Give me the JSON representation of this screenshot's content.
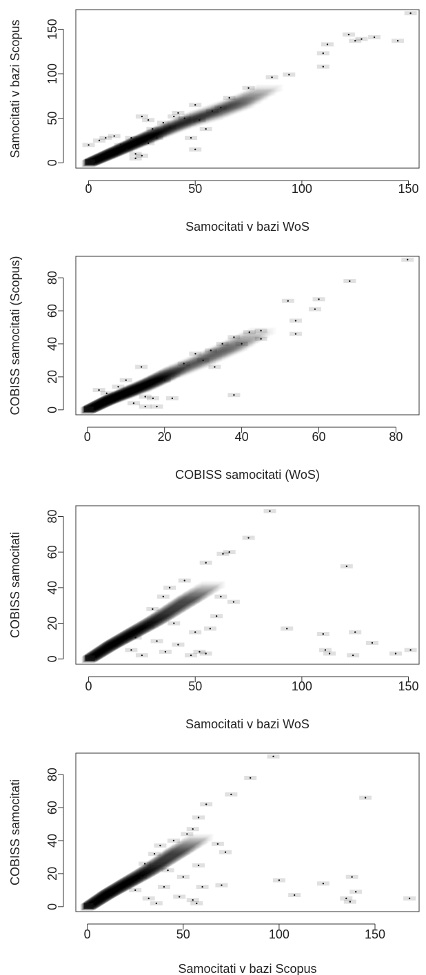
{
  "chart_data": [
    {
      "type": "heatmap",
      "style": "smoothed density scatter (grayscale)",
      "xlabel": "Samocitati v bazi WoS",
      "ylabel": "Samocitati v bazi Scopus",
      "xlim": [
        -6,
        155
      ],
      "ylim": [
        -6,
        172
      ],
      "xticks": [
        0,
        50,
        100,
        150
      ],
      "yticks": [
        0,
        50,
        100,
        150
      ],
      "xtick_labels": [
        "0",
        "50",
        "100",
        "150"
      ],
      "ytick_labels": [
        "0",
        "50",
        "100",
        "150"
      ],
      "grid": false,
      "legend": "none",
      "density_ridge": [
        [
          0,
          0
        ],
        [
          10,
          11
        ],
        [
          20,
          22
        ],
        [
          30,
          33
        ],
        [
          45,
          48
        ],
        [
          60,
          60
        ],
        [
          75,
          75
        ]
      ],
      "outliers": [
        [
          0,
          20
        ],
        [
          5,
          25
        ],
        [
          8,
          28
        ],
        [
          12,
          30
        ],
        [
          15,
          20
        ],
        [
          18,
          15
        ],
        [
          20,
          28
        ],
        [
          22,
          5
        ],
        [
          22,
          10
        ],
        [
          25,
          8
        ],
        [
          25,
          52
        ],
        [
          28,
          48
        ],
        [
          28,
          22
        ],
        [
          30,
          38
        ],
        [
          32,
          28
        ],
        [
          35,
          45
        ],
        [
          38,
          40
        ],
        [
          40,
          52
        ],
        [
          42,
          56
        ],
        [
          45,
          50
        ],
        [
          48,
          28
        ],
        [
          50,
          15
        ],
        [
          50,
          65
        ],
        [
          52,
          48
        ],
        [
          55,
          38
        ],
        [
          58,
          58
        ],
        [
          62,
          62
        ],
        [
          66,
          73
        ],
        [
          75,
          84
        ],
        [
          86,
          96
        ],
        [
          94,
          99
        ],
        [
          110,
          108
        ],
        [
          110,
          123
        ],
        [
          112,
          133
        ],
        [
          122,
          144
        ],
        [
          125,
          137
        ],
        [
          128,
          139
        ],
        [
          134,
          141
        ],
        [
          145,
          137
        ],
        [
          151,
          168
        ]
      ]
    },
    {
      "type": "heatmap",
      "style": "smoothed density scatter (grayscale)",
      "xlabel": "COBISS samocitati (WoS)",
      "ylabel": "COBISS samocitati (Scopus)",
      "xlim": [
        -3,
        86
      ],
      "ylim": [
        -3,
        93
      ],
      "xticks": [
        0,
        20,
        40,
        60,
        80
      ],
      "yticks": [
        0,
        20,
        40,
        60,
        80
      ],
      "xtick_labels": [
        "0",
        "20",
        "40",
        "60",
        "80"
      ],
      "ytick_labels": [
        "0",
        "20",
        "40",
        "60",
        "80"
      ],
      "grid": false,
      "legend": "none",
      "density_ridge": [
        [
          0,
          0
        ],
        [
          5,
          6
        ],
        [
          10,
          11
        ],
        [
          15,
          16
        ],
        [
          20,
          22
        ],
        [
          30,
          32
        ],
        [
          40,
          43
        ]
      ],
      "outliers": [
        [
          3,
          12
        ],
        [
          5,
          10
        ],
        [
          8,
          14
        ],
        [
          10,
          18
        ],
        [
          12,
          4
        ],
        [
          14,
          26
        ],
        [
          15,
          2
        ],
        [
          15,
          8
        ],
        [
          17,
          7
        ],
        [
          18,
          2
        ],
        [
          20,
          18
        ],
        [
          22,
          7
        ],
        [
          25,
          28
        ],
        [
          28,
          34
        ],
        [
          30,
          30
        ],
        [
          32,
          36
        ],
        [
          33,
          26
        ],
        [
          35,
          40
        ],
        [
          38,
          9
        ],
        [
          38,
          44
        ],
        [
          40,
          40
        ],
        [
          42,
          47
        ],
        [
          45,
          43
        ],
        [
          45,
          48
        ],
        [
          52,
          66
        ],
        [
          54,
          54
        ],
        [
          54,
          46
        ],
        [
          59,
          61
        ],
        [
          60,
          67
        ],
        [
          68,
          78
        ],
        [
          83,
          91
        ]
      ]
    },
    {
      "type": "heatmap",
      "style": "smoothed density scatter (grayscale)",
      "xlabel": "Samocitati v bazi WoS",
      "ylabel": "COBISS samocitati",
      "xlim": [
        -6,
        155
      ],
      "ylim": [
        -3,
        86
      ],
      "xticks": [
        0,
        50,
        100,
        150
      ],
      "yticks": [
        0,
        20,
        40,
        60,
        80
      ],
      "xtick_labels": [
        "0",
        "50",
        "100",
        "150"
      ],
      "ytick_labels": [
        "0",
        "20",
        "40",
        "60",
        "80"
      ],
      "grid": false,
      "legend": "none",
      "density_ridge": [
        [
          0,
          0
        ],
        [
          10,
          8
        ],
        [
          20,
          15
        ],
        [
          30,
          22
        ],
        [
          40,
          30
        ],
        [
          50,
          38
        ]
      ],
      "outliers": [
        [
          20,
          5
        ],
        [
          22,
          12
        ],
        [
          25,
          2
        ],
        [
          28,
          18
        ],
        [
          30,
          28
        ],
        [
          32,
          10
        ],
        [
          35,
          35
        ],
        [
          36,
          4
        ],
        [
          38,
          40
        ],
        [
          40,
          20
        ],
        [
          42,
          8
        ],
        [
          45,
          44
        ],
        [
          48,
          2
        ],
        [
          50,
          15
        ],
        [
          52,
          4
        ],
        [
          55,
          3
        ],
        [
          57,
          17
        ],
        [
          60,
          24
        ],
        [
          62,
          35
        ],
        [
          55,
          54
        ],
        [
          63,
          59
        ],
        [
          66,
          60
        ],
        [
          68,
          32
        ],
        [
          75,
          68
        ],
        [
          85,
          83
        ],
        [
          93,
          17
        ],
        [
          110,
          14
        ],
        [
          111,
          5
        ],
        [
          113,
          3
        ],
        [
          121,
          52
        ],
        [
          124,
          2
        ],
        [
          125,
          15
        ],
        [
          133,
          9
        ],
        [
          144,
          3
        ],
        [
          151,
          5
        ]
      ]
    },
    {
      "type": "heatmap",
      "style": "smoothed density scatter (grayscale)",
      "xlabel": "Samocitati v bazi Scopus",
      "ylabel": "COBISS samocitati",
      "xlim": [
        -6,
        173
      ],
      "ylim": [
        -3,
        93
      ],
      "xticks": [
        0,
        50,
        100,
        150
      ],
      "yticks": [
        0,
        20,
        40,
        60,
        80
      ],
      "xtick_labels": [
        "0",
        "50",
        "100",
        "150"
      ],
      "ytick_labels": [
        "0",
        "20",
        "40",
        "60",
        "80"
      ],
      "grid": false,
      "legend": "none",
      "density_ridge": [
        [
          0,
          0
        ],
        [
          10,
          8
        ],
        [
          20,
          15
        ],
        [
          30,
          22
        ],
        [
          40,
          30
        ],
        [
          50,
          38
        ]
      ],
      "outliers": [
        [
          25,
          10
        ],
        [
          28,
          18
        ],
        [
          30,
          26
        ],
        [
          32,
          5
        ],
        [
          35,
          32
        ],
        [
          36,
          2
        ],
        [
          38,
          37
        ],
        [
          40,
          12
        ],
        [
          42,
          22
        ],
        [
          45,
          40
        ],
        [
          48,
          6
        ],
        [
          50,
          18
        ],
        [
          52,
          44
        ],
        [
          55,
          4
        ],
        [
          57,
          2
        ],
        [
          58,
          25
        ],
        [
          60,
          12
        ],
        [
          62,
          62
        ],
        [
          55,
          47
        ],
        [
          58,
          54
        ],
        [
          68,
          38
        ],
        [
          70,
          13
        ],
        [
          72,
          33
        ],
        [
          75,
          68
        ],
        [
          85,
          78
        ],
        [
          97,
          91
        ],
        [
          100,
          16
        ],
        [
          108,
          7
        ],
        [
          123,
          14
        ],
        [
          135,
          5
        ],
        [
          137,
          3
        ],
        [
          138,
          18
        ],
        [
          140,
          9
        ],
        [
          145,
          66
        ],
        [
          168,
          5
        ]
      ]
    }
  ]
}
